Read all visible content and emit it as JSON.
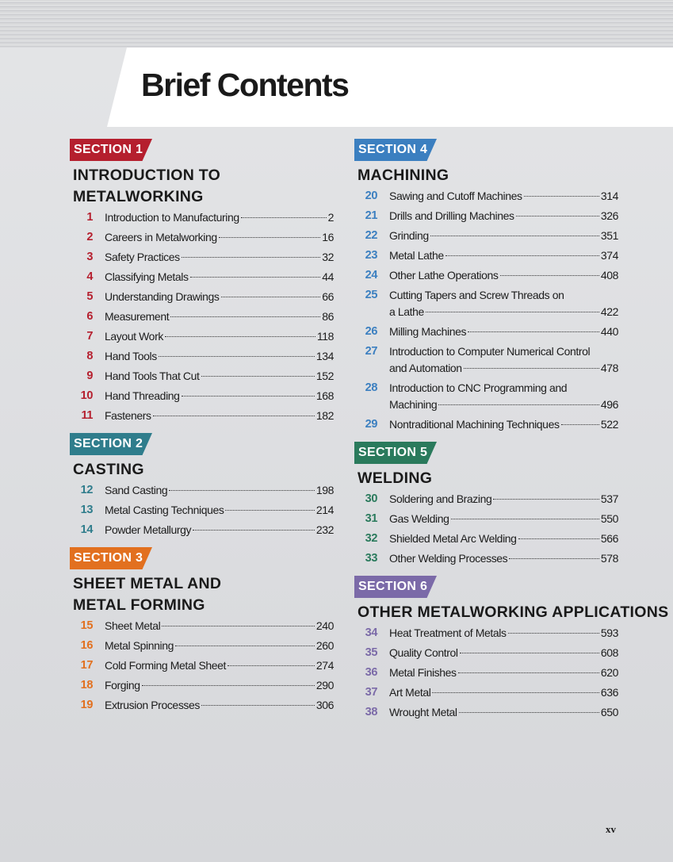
{
  "header": {
    "title": "Brief Contents"
  },
  "columns": [
    {
      "sections": [
        {
          "label": "SECTION 1",
          "color": "#b51f2e",
          "heading": [
            "INTRODUCTION TO",
            "METALWORKING"
          ],
          "chapters": [
            {
              "number": 1,
              "title": [
                "Introduction to Manufacturing"
              ],
              "page": 2
            },
            {
              "number": 2,
              "title": [
                "Careers in Metalworking"
              ],
              "page": 16
            },
            {
              "number": 3,
              "title": [
                "Safety Practices"
              ],
              "page": 32
            },
            {
              "number": 4,
              "title": [
                "Classifying Metals"
              ],
              "page": 44
            },
            {
              "number": 5,
              "title": [
                "Understanding Drawings"
              ],
              "page": 66
            },
            {
              "number": 6,
              "title": [
                "Measurement"
              ],
              "page": 86
            },
            {
              "number": 7,
              "title": [
                "Layout Work"
              ],
              "page": 118
            },
            {
              "number": 8,
              "title": [
                "Hand Tools"
              ],
              "page": 134
            },
            {
              "number": 9,
              "title": [
                "Hand Tools That Cut"
              ],
              "page": 152
            },
            {
              "number": 10,
              "title": [
                "Hand Threading"
              ],
              "page": 168
            },
            {
              "number": 11,
              "title": [
                "Fasteners"
              ],
              "page": 182
            }
          ]
        },
        {
          "label": "SECTION 2",
          "color": "#2f7d8c",
          "heading": [
            "CASTING"
          ],
          "chapters": [
            {
              "number": 12,
              "title": [
                "Sand Casting"
              ],
              "page": 198
            },
            {
              "number": 13,
              "title": [
                "Metal Casting Techniques"
              ],
              "page": 214
            },
            {
              "number": 14,
              "title": [
                "Powder Metallurgy"
              ],
              "page": 232
            }
          ]
        },
        {
          "label": "SECTION 3",
          "color": "#e2701f",
          "heading": [
            "SHEET METAL AND",
            "METAL FORMING"
          ],
          "chapters": [
            {
              "number": 15,
              "title": [
                "Sheet Metal"
              ],
              "page": 240
            },
            {
              "number": 16,
              "title": [
                "Metal Spinning"
              ],
              "page": 260
            },
            {
              "number": 17,
              "title": [
                "Cold Forming Metal Sheet"
              ],
              "page": 274
            },
            {
              "number": 18,
              "title": [
                "Forging"
              ],
              "page": 290
            },
            {
              "number": 19,
              "title": [
                "Extrusion Processes"
              ],
              "page": 306
            }
          ]
        }
      ]
    },
    {
      "sections": [
        {
          "label": "SECTION 4",
          "color": "#3b7fc0",
          "heading": [
            "MACHINING"
          ],
          "chapters": [
            {
              "number": 20,
              "title": [
                "Sawing and Cutoff Machines"
              ],
              "page": 314
            },
            {
              "number": 21,
              "title": [
                "Drills and Drilling Machines"
              ],
              "page": 326
            },
            {
              "number": 22,
              "title": [
                "Grinding"
              ],
              "page": 351
            },
            {
              "number": 23,
              "title": [
                "Metal Lathe"
              ],
              "page": 374
            },
            {
              "number": 24,
              "title": [
                "Other Lathe Operations"
              ],
              "page": 408
            },
            {
              "number": 25,
              "title": [
                "Cutting Tapers and Screw Threads on",
                "a Lathe"
              ],
              "page": 422
            },
            {
              "number": 26,
              "title": [
                "Milling Machines"
              ],
              "page": 440
            },
            {
              "number": 27,
              "title": [
                "Introduction to Computer Numerical Control",
                "and Automation"
              ],
              "page": 478
            },
            {
              "number": 28,
              "title": [
                "Introduction to CNC Programming and",
                "Machining"
              ],
              "page": 496
            },
            {
              "number": 29,
              "title": [
                "Nontraditional Machining Techniques"
              ],
              "page": 522
            }
          ]
        },
        {
          "label": "SECTION 5",
          "color": "#2a7a5c",
          "heading": [
            "WELDING"
          ],
          "chapters": [
            {
              "number": 30,
              "title": [
                "Soldering and Brazing"
              ],
              "page": 537
            },
            {
              "number": 31,
              "title": [
                "Gas Welding"
              ],
              "page": 550
            },
            {
              "number": 32,
              "title": [
                "Shielded Metal Arc Welding"
              ],
              "page": 566
            },
            {
              "number": 33,
              "title": [
                "Other Welding Processes"
              ],
              "page": 578
            }
          ]
        },
        {
          "label": "SECTION 6",
          "color": "#7b6aa8",
          "heading": [
            "OTHER METALWORKING APPLICATIONS"
          ],
          "chapters": [
            {
              "number": 34,
              "title": [
                "Heat Treatment of Metals"
              ],
              "page": 593
            },
            {
              "number": 35,
              "title": [
                "Quality Control"
              ],
              "page": 608
            },
            {
              "number": 36,
              "title": [
                "Metal Finishes"
              ],
              "page": 620
            },
            {
              "number": 37,
              "title": [
                "Art Metal"
              ],
              "page": 636
            },
            {
              "number": 38,
              "title": [
                "Wrought Metal"
              ],
              "page": 650
            }
          ]
        }
      ]
    }
  ],
  "footer": {
    "page_number": "xv"
  }
}
